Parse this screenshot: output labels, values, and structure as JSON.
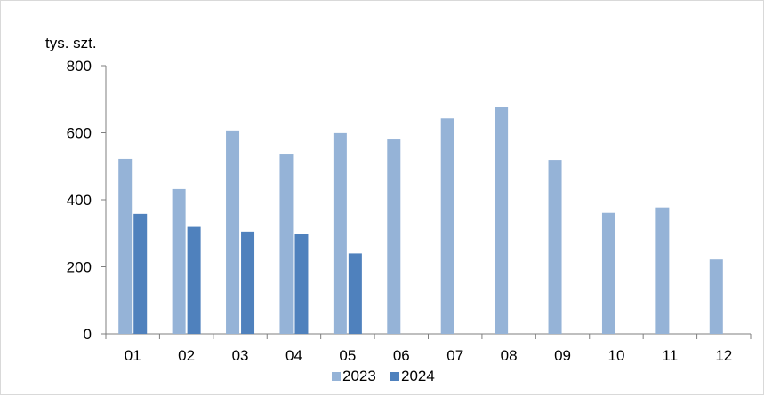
{
  "chart_data": {
    "type": "bar",
    "ylabel": "tys. szt.",
    "ylim": [
      0,
      800
    ],
    "yticks": [
      "0",
      "200",
      "400",
      "600",
      "800"
    ],
    "categories": [
      "01",
      "02",
      "03",
      "04",
      "05",
      "06",
      "07",
      "08",
      "09",
      "10",
      "11",
      "12"
    ],
    "series": [
      {
        "name": "2023",
        "color": "#95b3d7",
        "values": [
          522,
          432,
          607,
          535,
          599,
          580,
          643,
          678,
          519,
          361,
          377,
          222
        ]
      },
      {
        "name": "2024",
        "color": "#4f81bd",
        "values": [
          358,
          319,
          305,
          299,
          240,
          null,
          null,
          null,
          null,
          null,
          null,
          null
        ]
      }
    ],
    "grid": false,
    "legend_position": "bottom"
  }
}
